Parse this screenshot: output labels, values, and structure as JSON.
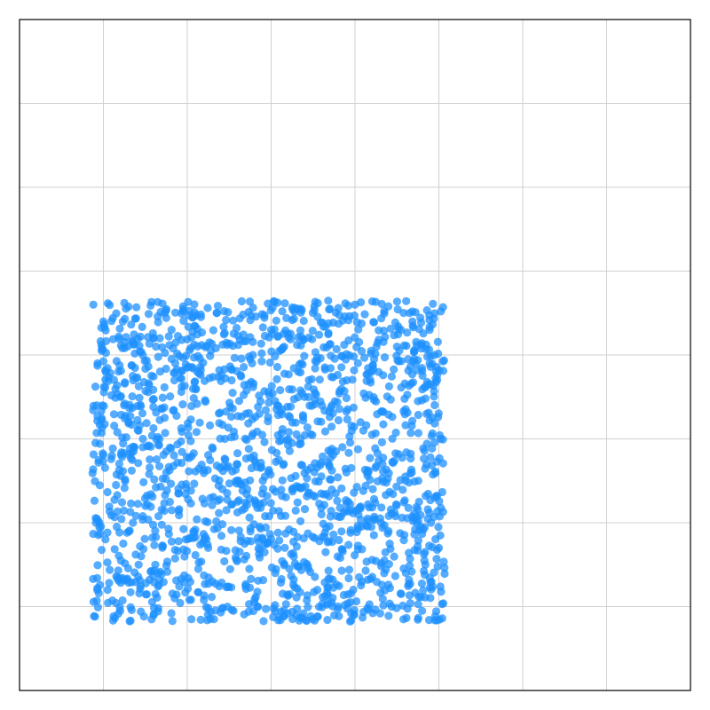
{
  "chart_data": {
    "type": "scatter",
    "title": "",
    "xlabel": "",
    "ylabel": "",
    "xlim": [
      0,
      8
    ],
    "ylim": [
      0,
      8
    ],
    "grid": true,
    "grid_step": 1,
    "tick_labels_shown": false,
    "marker_color": "#1e90ff",
    "marker_opacity": 0.75,
    "point_count_estimate": 1800,
    "points_cloud": {
      "distribution": "uniform",
      "x_range": [
        0.87,
        5.07
      ],
      "y_range": [
        0.82,
        4.65
      ]
    },
    "series": [
      {
        "x": [
          0.9,
          1.05,
          1.2,
          1.42,
          1.6,
          1.85,
          2.05,
          2.3,
          2.55,
          2.8,
          3.05,
          3.3,
          3.55,
          3.8,
          4.05,
          4.3,
          4.55,
          4.8,
          5.04,
          0.95,
          1.5,
          2.2,
          2.9,
          3.6,
          4.4,
          4.95,
          1.1,
          1.75,
          2.45,
          3.15,
          3.85,
          4.6,
          0.92,
          1.3,
          2.1,
          2.7,
          3.4,
          4.1,
          4.75,
          5.02,
          1.0,
          1.6,
          2.35,
          3.0,
          3.7,
          4.5,
          0.88,
          1.45,
          2.25,
          2.95,
          3.65,
          4.35,
          5.0,
          1.15,
          1.9,
          2.6,
          3.25,
          3.95,
          4.7,
          0.93,
          1.35,
          2.0,
          2.75,
          3.45,
          4.2,
          4.9,
          1.25,
          1.95,
          2.65,
          3.35,
          4.0,
          4.65,
          5.05
        ],
        "y": [
          0.88,
          1.2,
          0.95,
          1.5,
          0.9,
          1.1,
          0.85,
          1.3,
          0.95,
          1.05,
          1.4,
          0.9,
          1.2,
          1.0,
          1.35,
          0.92,
          1.15,
          0.95,
          0.86,
          2.0,
          2.2,
          1.8,
          2.5,
          2.1,
          1.9,
          2.3,
          2.8,
          2.6,
          3.0,
          2.7,
          2.9,
          2.55,
          3.4,
          3.2,
          3.6,
          3.3,
          3.5,
          3.1,
          3.45,
          3.0,
          4.4,
          4.2,
          4.5,
          4.3,
          4.55,
          4.1,
          4.6,
          1.6,
          1.7,
          1.75,
          1.65,
          1.55,
          1.7,
          2.45,
          2.35,
          2.25,
          2.4,
          2.15,
          2.05,
          3.9,
          3.75,
          3.85,
          3.95,
          3.7,
          3.8,
          3.65,
          4.62,
          4.58,
          4.64,
          4.55,
          4.6,
          4.5,
          4.57
        ]
      }
    ]
  }
}
